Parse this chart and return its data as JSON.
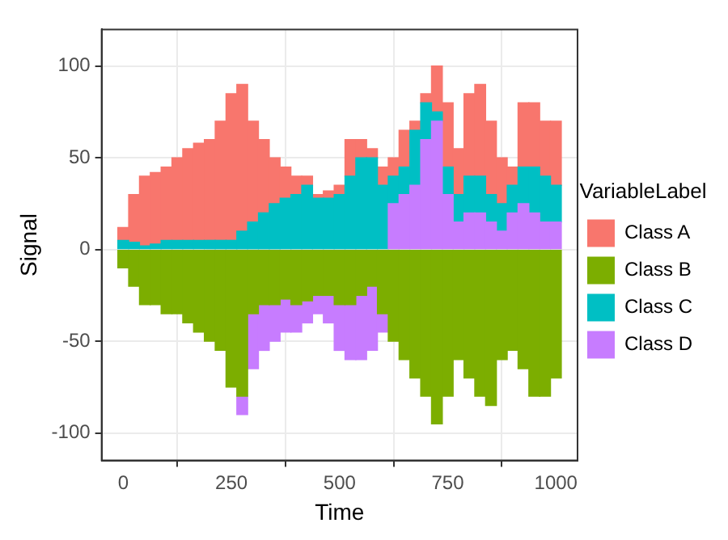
{
  "chart_data": {
    "type": "bar",
    "stacked": true,
    "xlabel": "Time",
    "ylabel": "Signal",
    "legend_title": "VariableLabel",
    "legend": "right",
    "grid": true,
    "x": [
      0,
      25,
      50,
      75,
      100,
      125,
      150,
      175,
      200,
      225,
      250,
      275,
      300,
      325,
      350,
      375,
      400,
      425,
      450,
      475,
      500,
      525,
      550,
      575,
      600,
      625,
      650,
      675,
      700,
      725,
      750,
      775,
      800,
      825,
      850,
      875,
      900,
      925,
      950,
      975,
      1000
    ],
    "xlim": [
      -50,
      1050
    ],
    "xticks": [
      0,
      250,
      500,
      750,
      1000
    ],
    "ylim": [
      -115,
      120
    ],
    "yticks": [
      -100,
      -50,
      0,
      50,
      100
    ],
    "series": [
      {
        "name": "Class B",
        "color": "#7cae00",
        "values": [
          -10,
          -20,
          -30,
          -30,
          -35,
          -35,
          -40,
          -45,
          -50,
          -55,
          -75,
          -80,
          -35,
          -30,
          -30,
          -27,
          -30,
          -28,
          -25,
          -25,
          -30,
          -30,
          -25,
          -20,
          -35,
          -50,
          -60,
          -70,
          -80,
          -95,
          -80,
          -60,
          -70,
          -80,
          -85,
          -60,
          -55,
          -65,
          -80,
          -80,
          -70
        ]
      },
      {
        "name": "Class D",
        "color": "#c77cff",
        "values": [
          null,
          null,
          null,
          null,
          null,
          null,
          null,
          null,
          null,
          null,
          null,
          -10,
          -30,
          -25,
          -20,
          -18,
          -15,
          -12,
          -10,
          -15,
          -25,
          -30,
          -35,
          -35,
          -10,
          25,
          30,
          35,
          60,
          70,
          30,
          15,
          20,
          20,
          15,
          10,
          20,
          25,
          20,
          15,
          15
        ]
      },
      {
        "name": "Class C",
        "color": "#00bfc4",
        "values": [
          5,
          4,
          2,
          3,
          5,
          5,
          5,
          5,
          5,
          5,
          5,
          10,
          15,
          20,
          25,
          28,
          30,
          35,
          28,
          28,
          30,
          40,
          50,
          50,
          35,
          15,
          15,
          30,
          20,
          5,
          15,
          15,
          20,
          20,
          15,
          15,
          15,
          20,
          25,
          25,
          20
        ]
      },
      {
        "name": "Class A",
        "color": "#f8766d",
        "values": [
          7,
          26,
          38,
          39,
          40,
          45,
          50,
          53,
          55,
          65,
          80,
          80,
          55,
          40,
          25,
          17,
          10,
          5,
          2,
          4,
          5,
          20,
          10,
          5,
          10,
          10,
          20,
          5,
          5,
          25,
          35,
          25,
          45,
          50,
          40,
          25,
          10,
          35,
          35,
          30,
          35
        ]
      }
    ]
  }
}
